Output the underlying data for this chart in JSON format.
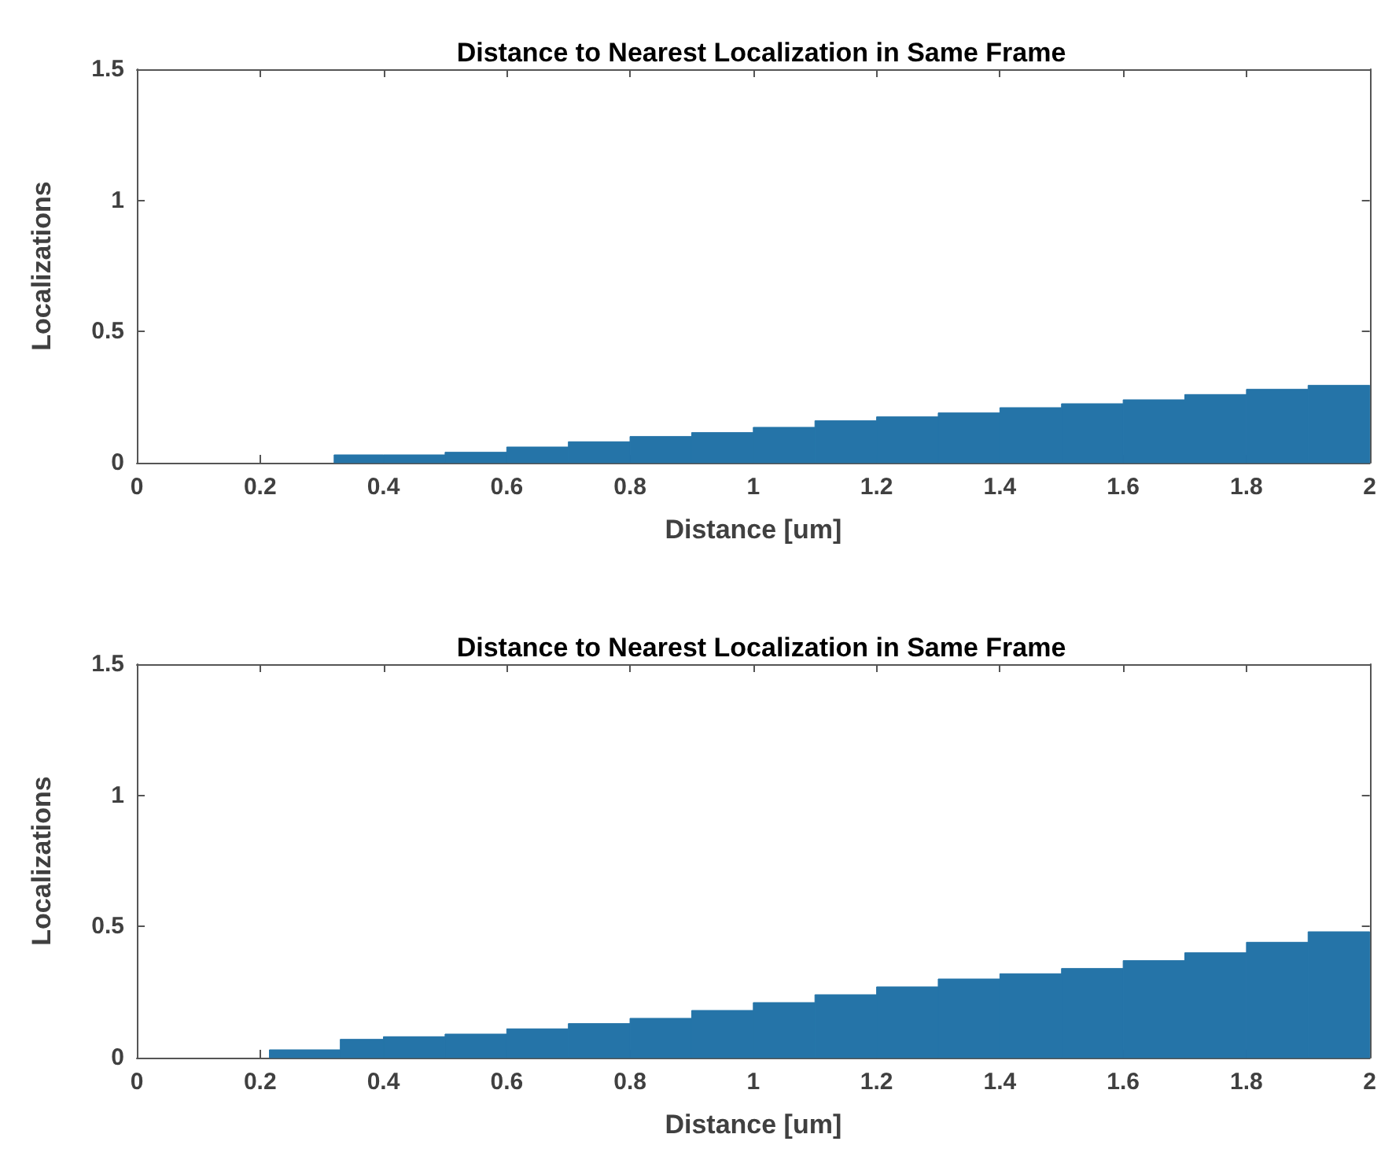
{
  "chart_data": [
    {
      "type": "histogram",
      "title": "Distance to Nearest Localization in Same Frame",
      "xlabel": "Distance [um]",
      "ylabel": "Localizations",
      "color": "#2574a8",
      "bins": [
        0.32,
        0.4,
        0.5,
        0.6,
        0.7,
        0.8,
        0.9,
        1.0,
        1.1,
        1.2,
        1.3,
        1.4,
        1.5,
        1.6,
        1.7,
        1.8,
        1.9,
        2.0
      ],
      "values": [
        0.03,
        0.03,
        0.04,
        0.06,
        0.08,
        0.1,
        0.115,
        0.135,
        0.16,
        0.175,
        0.19,
        0.21,
        0.225,
        0.24,
        0.26,
        0.28,
        0.295
      ],
      "xlim": [
        0,
        2
      ],
      "xticks": [
        0,
        0.2,
        0.4,
        0.6,
        0.8,
        1,
        1.2,
        1.4,
        1.6,
        1.8,
        2
      ],
      "ylim": [
        0,
        1.5
      ],
      "yticks": [
        0,
        0.5,
        1,
        1.5
      ],
      "grid": false
    },
    {
      "type": "histogram",
      "title": "Distance to Nearest Localization in Same Frame",
      "xlabel": "Distance [um]",
      "ylabel": "Localizations",
      "color": "#2574a8",
      "bins": [
        0.215,
        0.33,
        0.4,
        0.5,
        0.6,
        0.7,
        0.8,
        0.9,
        1.0,
        1.1,
        1.2,
        1.3,
        1.4,
        1.5,
        1.6,
        1.7,
        1.8,
        1.9,
        2.0
      ],
      "values": [
        0.03,
        0.07,
        0.08,
        0.09,
        0.11,
        0.13,
        0.15,
        0.18,
        0.21,
        0.24,
        0.27,
        0.3,
        0.32,
        0.34,
        0.37,
        0.4,
        0.44,
        0.48
      ],
      "xlim": [
        0,
        2
      ],
      "xticks": [
        0,
        0.2,
        0.4,
        0.6,
        0.8,
        1,
        1.2,
        1.4,
        1.6,
        1.8,
        2
      ],
      "ylim": [
        0,
        1.5
      ],
      "yticks": [
        0,
        0.5,
        1,
        1.5
      ],
      "grid": false
    }
  ]
}
